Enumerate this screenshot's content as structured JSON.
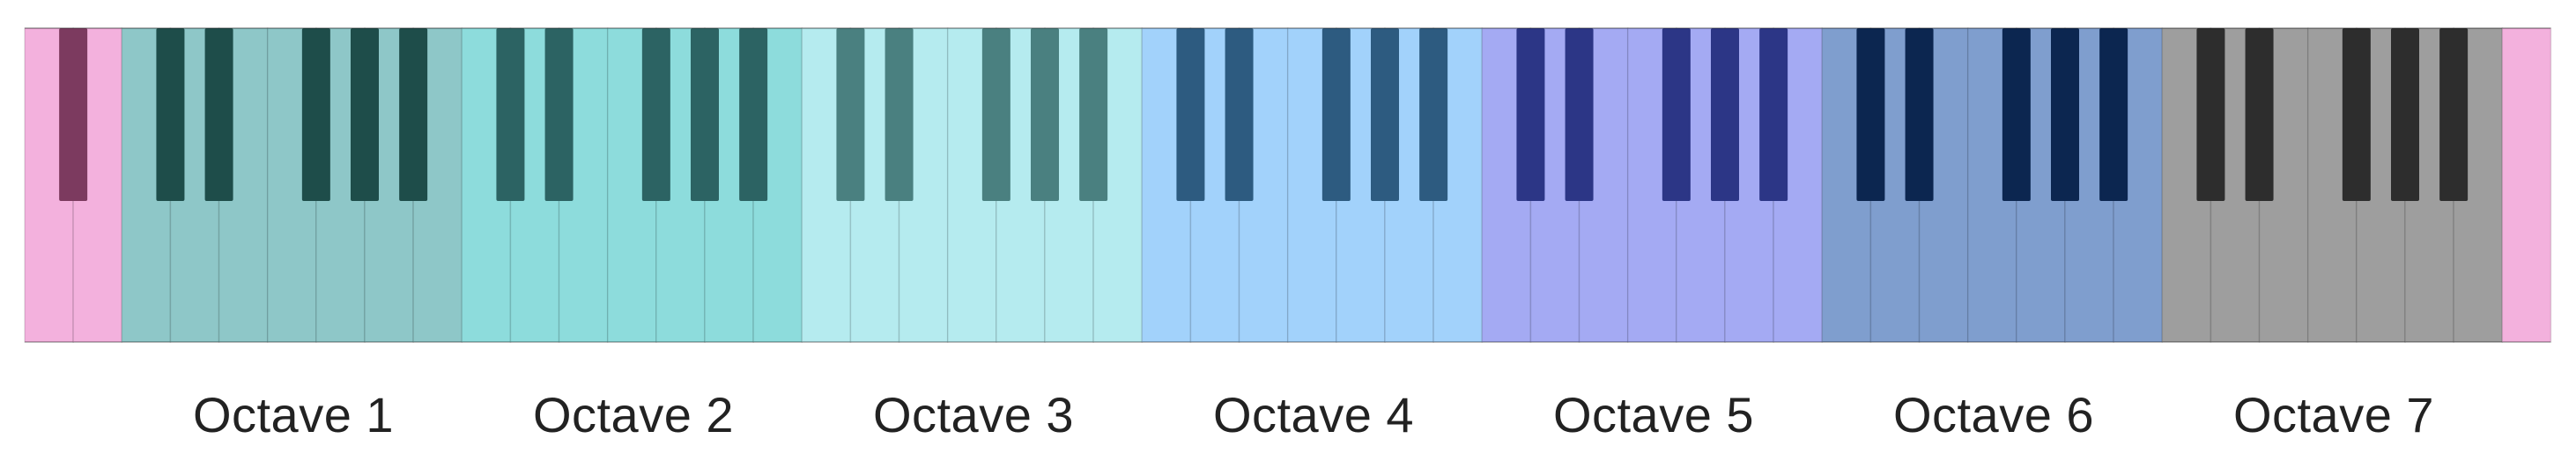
{
  "title": "",
  "sections": [
    {
      "name": "partial-low",
      "white_count": 2,
      "white_color": "#f3b1dd",
      "black_color": "#7c3a5f",
      "black_keys_after": [
        0
      ]
    },
    {
      "name": "octave-1",
      "label": "Octave 1",
      "white_count": 7,
      "white_color": "#8ec7c8",
      "black_color": "#1e4d4a",
      "black_keys_after": [
        0,
        1,
        3,
        4,
        5
      ]
    },
    {
      "name": "octave-2",
      "label": "Octave 2",
      "white_count": 7,
      "white_color": "#8ddcdc",
      "black_color": "#2c6363",
      "black_keys_after": [
        0,
        1,
        3,
        4,
        5
      ]
    },
    {
      "name": "octave-3",
      "label": "Octave 3",
      "white_count": 7,
      "white_color": "#b5ebef",
      "black_color": "#4a8080",
      "black_keys_after": [
        0,
        1,
        3,
        4,
        5
      ]
    },
    {
      "name": "octave-4",
      "label": "Octave 4",
      "white_count": 7,
      "white_color": "#a2d2fb",
      "black_color": "#2d5b80",
      "black_keys_after": [
        0,
        1,
        3,
        4,
        5
      ]
    },
    {
      "name": "octave-5",
      "label": "Octave 5",
      "white_count": 7,
      "white_color": "#a4aaf3",
      "black_color": "#2c3686",
      "black_keys_after": [
        0,
        1,
        3,
        4,
        5
      ]
    },
    {
      "name": "octave-6",
      "label": "Octave 6",
      "white_count": 7,
      "white_color": "#7f9ece",
      "black_color": "#0c2650",
      "black_keys_after": [
        0,
        1,
        3,
        4,
        5
      ]
    },
    {
      "name": "octave-7",
      "label": "Octave 7",
      "white_count": 7,
      "white_color": "#9e9e9e",
      "black_color": "#2d2d2d",
      "black_keys_after": [
        0,
        1,
        3,
        4,
        5
      ]
    },
    {
      "name": "partial-high",
      "white_count": 1,
      "white_color": "#f3b1dd",
      "black_color": "#7c3a5f",
      "black_keys_after": []
    }
  ],
  "labels": [
    "Octave 1",
    "Octave 2",
    "Octave 3",
    "Octave 4",
    "Octave 5",
    "Octave 6",
    "Octave 7"
  ]
}
